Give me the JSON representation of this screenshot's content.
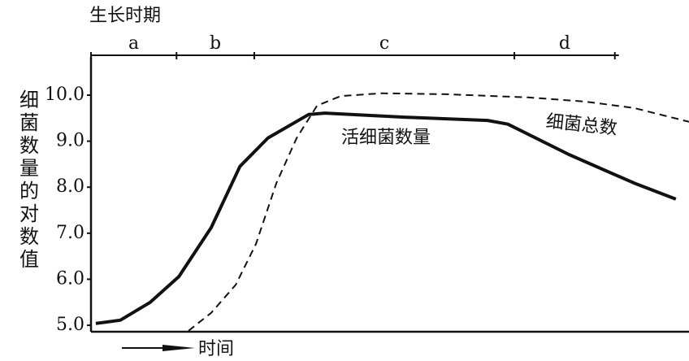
{
  "chart_data": {
    "type": "line",
    "title": "生长时期",
    "y_label": "细菌数量的对数值",
    "x_label": "时间",
    "phases": {
      "labels": [
        "a",
        "b",
        "c",
        "d"
      ],
      "boundaries": [
        0,
        14.3,
        27.3,
        70.8,
        87.6
      ]
    },
    "xlim": [
      0,
      100
    ],
    "ylim": [
      4.86,
      10.83
    ],
    "yticks": [
      {
        "value": 5,
        "label": "5.0"
      },
      {
        "value": 6,
        "label": "6.0"
      },
      {
        "value": 7,
        "label": "7.0"
      },
      {
        "value": 8,
        "label": "8.0"
      },
      {
        "value": 9,
        "label": "9.0"
      },
      {
        "value": 10,
        "label": "10.0"
      }
    ],
    "series": [
      {
        "name": "活细菌数量",
        "color": "#111111",
        "dashed": false,
        "x": [
          0.8,
          4.9,
          9.9,
          14.7,
          20.1,
          24.9,
          29.6,
          36.4,
          39.1,
          52.7,
          66.3,
          69.7,
          79.9,
          90.8,
          97.8
        ],
        "values": [
          5.04,
          5.11,
          5.5,
          6.06,
          7.12,
          8.45,
          9.07,
          9.58,
          9.61,
          9.52,
          9.45,
          9.37,
          8.71,
          8.09,
          7.74
        ]
      },
      {
        "name": "细菌总数",
        "color": "#111111",
        "dashed": true,
        "x": [
          16.3,
          20.1,
          24.2,
          27.6,
          31.0,
          34.4,
          37.8,
          41.8,
          48.6,
          59.5,
          73.1,
          82.6,
          90.8,
          100
        ],
        "values": [
          4.88,
          5.27,
          5.88,
          6.77,
          8.09,
          9.07,
          9.77,
          9.98,
          10.04,
          10.02,
          9.95,
          9.86,
          9.72,
          9.42
        ]
      }
    ]
  }
}
